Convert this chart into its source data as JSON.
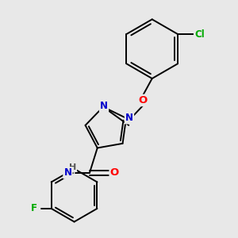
{
  "background_color": "#e8e8e8",
  "bond_color": "#000000",
  "atom_colors": {
    "N": "#0000cc",
    "O": "#ff0000",
    "Cl": "#00aa00",
    "F": "#00aa00",
    "C": "#000000",
    "H": "#555555"
  },
  "font_size": 8.5,
  "figsize": [
    3.0,
    3.0
  ],
  "dpi": 100
}
